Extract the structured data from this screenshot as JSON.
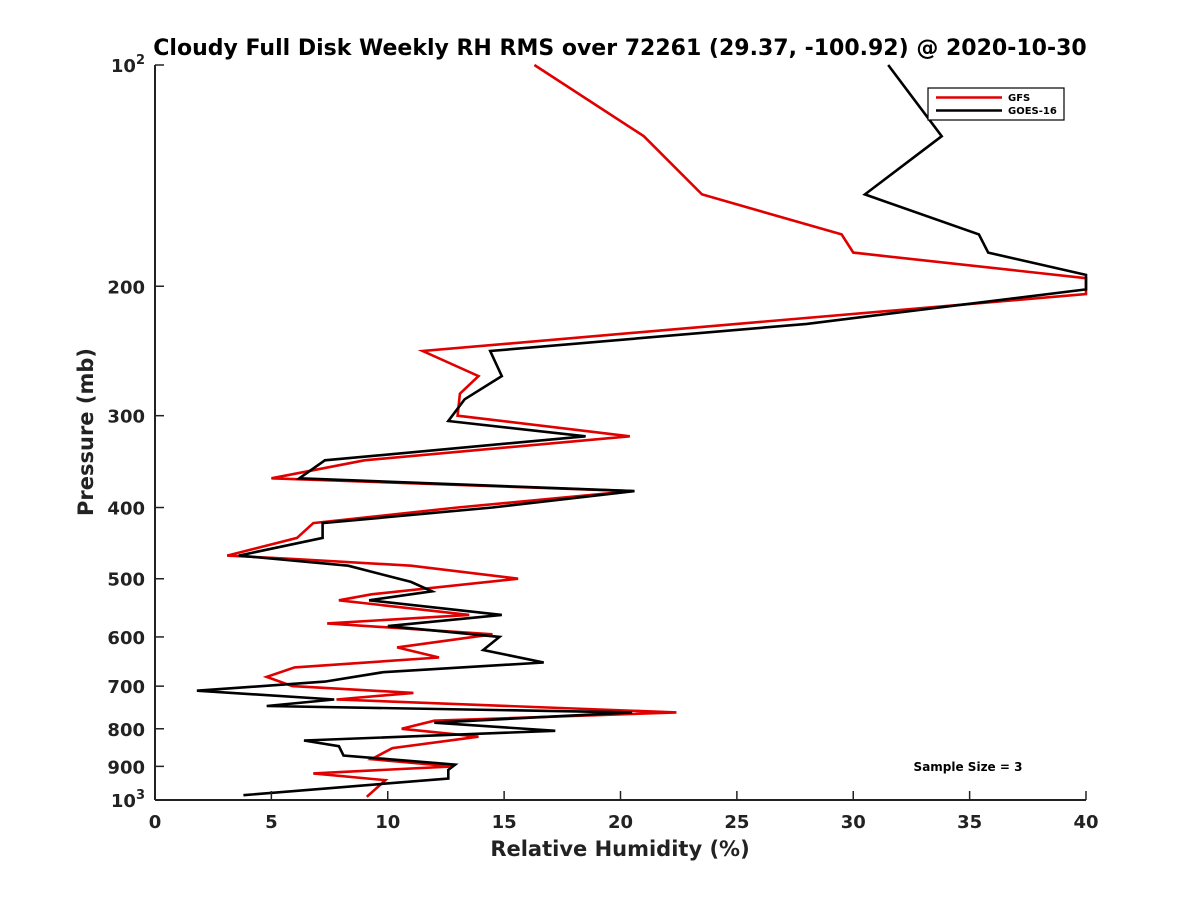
{
  "chart_data": {
    "type": "line",
    "title": "Cloudy Full Disk Weekly RH RMS over 72261 (29.37, -100.92) @ 2020-10-30",
    "xlabel": "Relative Humidity (%)",
    "ylabel": "Pressure (mb)",
    "xlim": [
      0,
      40
    ],
    "ylim": [
      100,
      1000
    ],
    "y_scale": "log",
    "y_reversed": true,
    "grid": false,
    "x_ticks": [
      "0",
      "5",
      "10",
      "15",
      "20",
      "25",
      "30",
      "35",
      "40"
    ],
    "y_ticks": [
      {
        "value": 100,
        "base": "10",
        "exp": "2"
      },
      {
        "value": 200,
        "label": "200"
      },
      {
        "value": 300,
        "label": "300"
      },
      {
        "value": 400,
        "label": "400"
      },
      {
        "value": 500,
        "label": "500"
      },
      {
        "value": 600,
        "label": "600"
      },
      {
        "value": 700,
        "label": "700"
      },
      {
        "value": 800,
        "label": "800"
      },
      {
        "value": 900,
        "label": "900"
      },
      {
        "value": 1000,
        "base": "10",
        "exp": "3"
      }
    ],
    "legend_position": "top-right",
    "series": [
      {
        "name": "GFS",
        "color": "#e00000",
        "points": [
          {
            "x": 16.3,
            "p": 100
          },
          {
            "x": 21.0,
            "p": 125
          },
          {
            "x": 23.5,
            "p": 150
          },
          {
            "x": 29.5,
            "p": 170
          },
          {
            "x": 30.0,
            "p": 180
          },
          {
            "x": 40.0,
            "p": 195
          },
          {
            "x": 40.0,
            "p": 205
          },
          {
            "x": 25.0,
            "p": 225
          },
          {
            "x": 11.5,
            "p": 245
          },
          {
            "x": 13.9,
            "p": 265
          },
          {
            "x": 13.1,
            "p": 280
          },
          {
            "x": 13.0,
            "p": 300
          },
          {
            "x": 20.4,
            "p": 320
          },
          {
            "x": 9.0,
            "p": 345
          },
          {
            "x": 5.0,
            "p": 365
          },
          {
            "x": 20.5,
            "p": 380
          },
          {
            "x": 13.0,
            "p": 400
          },
          {
            "x": 6.8,
            "p": 420
          },
          {
            "x": 6.1,
            "p": 440
          },
          {
            "x": 3.1,
            "p": 465
          },
          {
            "x": 6.0,
            "p": 470
          },
          {
            "x": 11.0,
            "p": 480
          },
          {
            "x": 15.6,
            "p": 500
          },
          {
            "x": 9.3,
            "p": 525
          },
          {
            "x": 7.9,
            "p": 535
          },
          {
            "x": 13.5,
            "p": 560
          },
          {
            "x": 7.4,
            "p": 575
          },
          {
            "x": 14.5,
            "p": 595
          },
          {
            "x": 10.4,
            "p": 620
          },
          {
            "x": 12.2,
            "p": 640
          },
          {
            "x": 6.0,
            "p": 660
          },
          {
            "x": 4.8,
            "p": 680
          },
          {
            "x": 5.9,
            "p": 700
          },
          {
            "x": 11.1,
            "p": 715
          },
          {
            "x": 7.8,
            "p": 730
          },
          {
            "x": 22.4,
            "p": 760
          },
          {
            "x": 12.0,
            "p": 780
          },
          {
            "x": 10.6,
            "p": 800
          },
          {
            "x": 13.9,
            "p": 820
          },
          {
            "x": 10.2,
            "p": 850
          },
          {
            "x": 9.3,
            "p": 880
          },
          {
            "x": 12.8,
            "p": 900
          },
          {
            "x": 6.8,
            "p": 920
          },
          {
            "x": 9.9,
            "p": 940
          },
          {
            "x": 9.1,
            "p": 990
          }
        ]
      },
      {
        "name": "GOES-16",
        "color": "#000000",
        "points": [
          {
            "x": 31.5,
            "p": 100
          },
          {
            "x": 33.8,
            "p": 125
          },
          {
            "x": 30.5,
            "p": 150
          },
          {
            "x": 35.4,
            "p": 170
          },
          {
            "x": 35.8,
            "p": 180
          },
          {
            "x": 40.0,
            "p": 193
          },
          {
            "x": 40.0,
            "p": 202
          },
          {
            "x": 28.0,
            "p": 225
          },
          {
            "x": 14.4,
            "p": 245
          },
          {
            "x": 14.9,
            "p": 265
          },
          {
            "x": 13.3,
            "p": 285
          },
          {
            "x": 12.6,
            "p": 305
          },
          {
            "x": 18.5,
            "p": 320
          },
          {
            "x": 7.3,
            "p": 345
          },
          {
            "x": 6.2,
            "p": 365
          },
          {
            "x": 20.6,
            "p": 380
          },
          {
            "x": 14.5,
            "p": 400
          },
          {
            "x": 7.2,
            "p": 420
          },
          {
            "x": 7.2,
            "p": 440
          },
          {
            "x": 3.6,
            "p": 465
          },
          {
            "x": 8.3,
            "p": 480
          },
          {
            "x": 11.0,
            "p": 505
          },
          {
            "x": 11.9,
            "p": 520
          },
          {
            "x": 9.2,
            "p": 535
          },
          {
            "x": 14.9,
            "p": 560
          },
          {
            "x": 10.0,
            "p": 580
          },
          {
            "x": 14.8,
            "p": 600
          },
          {
            "x": 14.1,
            "p": 625
          },
          {
            "x": 16.7,
            "p": 650
          },
          {
            "x": 9.8,
            "p": 670
          },
          {
            "x": 7.3,
            "p": 690
          },
          {
            "x": 1.8,
            "p": 710
          },
          {
            "x": 7.7,
            "p": 730
          },
          {
            "x": 4.8,
            "p": 745
          },
          {
            "x": 20.5,
            "p": 760
          },
          {
            "x": 12.0,
            "p": 785
          },
          {
            "x": 17.2,
            "p": 805
          },
          {
            "x": 6.4,
            "p": 830
          },
          {
            "x": 7.9,
            "p": 845
          },
          {
            "x": 8.1,
            "p": 870
          },
          {
            "x": 12.9,
            "p": 895
          },
          {
            "x": 12.6,
            "p": 910
          },
          {
            "x": 12.6,
            "p": 935
          },
          {
            "x": 3.8,
            "p": 985
          }
        ]
      }
    ],
    "annotation": "Sample Size = 3"
  }
}
